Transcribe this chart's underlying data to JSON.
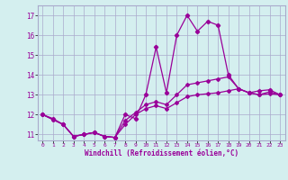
{
  "xlabel": "Windchill (Refroidissement éolien,°C)",
  "x": [
    0,
    1,
    2,
    3,
    4,
    5,
    6,
    7,
    8,
    9,
    10,
    11,
    12,
    13,
    14,
    15,
    16,
    17,
    18,
    19,
    20,
    21,
    22,
    23
  ],
  "line1": [
    12.0,
    11.8,
    11.5,
    10.9,
    11.0,
    11.1,
    10.9,
    10.85,
    12.0,
    11.8,
    13.0,
    15.4,
    13.1,
    16.0,
    17.0,
    16.2,
    16.7,
    16.5,
    14.0,
    13.3,
    13.1,
    13.2,
    13.25,
    13.0
  ],
  "line2": [
    12.0,
    11.75,
    11.5,
    10.9,
    11.0,
    11.1,
    10.9,
    10.85,
    11.7,
    12.1,
    12.5,
    12.65,
    12.5,
    13.0,
    13.5,
    13.6,
    13.7,
    13.8,
    13.9,
    13.3,
    13.1,
    13.0,
    13.15,
    13.0
  ],
  "line3": [
    12.0,
    11.75,
    11.5,
    10.9,
    11.0,
    11.1,
    10.9,
    10.85,
    11.5,
    12.0,
    12.3,
    12.45,
    12.3,
    12.6,
    12.9,
    13.0,
    13.05,
    13.1,
    13.2,
    13.3,
    13.1,
    13.0,
    13.05,
    13.0
  ],
  "line_color": "#990099",
  "bg_color": "#d4efef",
  "grid_color": "#aaaacc",
  "ylim": [
    10.7,
    17.5
  ],
  "yticks": [
    11,
    12,
    13,
    14,
    15,
    16,
    17
  ],
  "xticks": [
    0,
    1,
    2,
    3,
    4,
    5,
    6,
    7,
    8,
    9,
    10,
    11,
    12,
    13,
    14,
    15,
    16,
    17,
    18,
    19,
    20,
    21,
    22,
    23
  ]
}
